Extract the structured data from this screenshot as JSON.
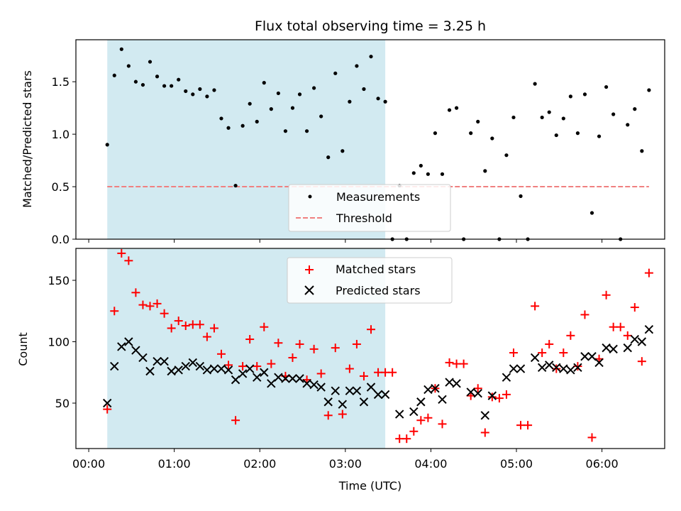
{
  "chart_data": [
    {
      "type": "scatter",
      "title": "Flux total observing time = 3.25 h",
      "xlabel": "",
      "ylabel": "Matched/Predicted stars",
      "ylim": [
        0,
        1.9
      ],
      "yticks": [
        "0.0",
        "0.5",
        "1.0",
        "1.5"
      ],
      "highlight_span": {
        "start": "00:13",
        "end": "03:28",
        "color": "#add8e6"
      },
      "threshold": {
        "name": "Threshold",
        "value": 0.5,
        "color": "#f08080"
      },
      "legend": {
        "position": "bottom-center",
        "entries": [
          "Measurements",
          "Threshold"
        ]
      },
      "series": [
        {
          "name": "Measurements",
          "marker": "dot",
          "color": "#000000",
          "x": [
            "00:13",
            "00:18",
            "00:23",
            "00:28",
            "00:33",
            "00:38",
            "00:43",
            "00:48",
            "00:53",
            "00:58",
            "01:03",
            "01:08",
            "01:13",
            "01:18",
            "01:23",
            "01:28",
            "01:33",
            "01:38",
            "01:43",
            "01:48",
            "01:53",
            "01:58",
            "02:03",
            "02:08",
            "02:13",
            "02:18",
            "02:23",
            "02:28",
            "02:33",
            "02:38",
            "02:43",
            "02:48",
            "02:53",
            "02:58",
            "03:03",
            "03:08",
            "03:13",
            "03:18",
            "03:23",
            "03:28",
            "03:33",
            "03:38",
            "03:43",
            "03:48",
            "03:53",
            "03:58",
            "04:03",
            "04:08",
            "04:13",
            "04:18",
            "04:23",
            "04:28",
            "04:33",
            "04:38",
            "04:43",
            "04:48",
            "04:53",
            "04:58",
            "05:03",
            "05:08",
            "05:13",
            "05:18",
            "05:23",
            "05:28",
            "05:33",
            "05:38",
            "05:43",
            "05:48",
            "05:53",
            "05:58",
            "06:03",
            "06:08",
            "06:13",
            "06:18",
            "06:23",
            "06:28",
            "06:33"
          ],
          "y": [
            0.9,
            1.56,
            1.81,
            1.65,
            1.5,
            1.47,
            1.69,
            1.55,
            1.46,
            1.46,
            1.52,
            1.41,
            1.38,
            1.43,
            1.36,
            1.42,
            1.15,
            1.06,
            0.51,
            1.08,
            1.29,
            1.12,
            1.49,
            1.24,
            1.39,
            1.03,
            1.25,
            1.38,
            1.03,
            1.44,
            1.17,
            0.78,
            1.58,
            0.84,
            1.31,
            1.65,
            1.43,
            1.74,
            1.34,
            1.31,
            0.0,
            0.51,
            0.0,
            0.63,
            0.7,
            0.62,
            1.01,
            0.62,
            1.23,
            1.25,
            0.0,
            1.01,
            1.12,
            0.65,
            0.96,
            0.0,
            0.8,
            1.16,
            0.41,
            0.0,
            1.48,
            1.16,
            1.21,
            0.99,
            1.15,
            1.36,
            1.01,
            1.38,
            0.25,
            0.98,
            1.45,
            1.19,
            0.0,
            1.09,
            1.24,
            0.84,
            1.42
          ]
        }
      ]
    },
    {
      "type": "scatter",
      "title": "",
      "xlabel": "Time (UTC)",
      "ylabel": "Count",
      "ylim": [
        13,
        176
      ],
      "yticks": [
        "50",
        "100",
        "150"
      ],
      "xticks": [
        "00:00",
        "01:00",
        "02:00",
        "03:00",
        "04:00",
        "05:00",
        "06:00"
      ],
      "highlight_span": {
        "start": "00:13",
        "end": "03:28",
        "color": "#add8e6"
      },
      "legend": {
        "position": "top-center",
        "entries": [
          "Matched stars",
          "Predicted stars"
        ]
      },
      "series": [
        {
          "name": "Matched stars",
          "marker": "plus",
          "color": "#ff0000",
          "x": [
            "00:13",
            "00:18",
            "00:23",
            "00:28",
            "00:33",
            "00:38",
            "00:43",
            "00:48",
            "00:53",
            "00:58",
            "01:03",
            "01:08",
            "01:13",
            "01:18",
            "01:23",
            "01:28",
            "01:33",
            "01:38",
            "01:43",
            "01:48",
            "01:53",
            "01:58",
            "02:03",
            "02:08",
            "02:13",
            "02:18",
            "02:23",
            "02:28",
            "02:33",
            "02:38",
            "02:43",
            "02:48",
            "02:53",
            "02:58",
            "03:03",
            "03:08",
            "03:13",
            "03:18",
            "03:23",
            "03:28",
            "03:33",
            "03:38",
            "03:43",
            "03:48",
            "03:53",
            "03:58",
            "04:03",
            "04:08",
            "04:13",
            "04:18",
            "04:23",
            "04:28",
            "04:33",
            "04:38",
            "04:43",
            "04:48",
            "04:53",
            "04:58",
            "05:03",
            "05:08",
            "05:13",
            "05:18",
            "05:23",
            "05:28",
            "05:33",
            "05:38",
            "05:43",
            "05:48",
            "05:53",
            "05:58",
            "06:03",
            "06:08",
            "06:13",
            "06:18",
            "06:23",
            "06:28",
            "06:33"
          ],
          "y": [
            45,
            125,
            172,
            166,
            140,
            130,
            129,
            131,
            123,
            111,
            117,
            113,
            114,
            114,
            104,
            111,
            90,
            81,
            36,
            80,
            102,
            80,
            112,
            82,
            99,
            72,
            87,
            98,
            69,
            94,
            74,
            40,
            95,
            41,
            78,
            98,
            72,
            110,
            75,
            75,
            75,
            21,
            21,
            27,
            36,
            38,
            62,
            33,
            83,
            82,
            82,
            56,
            62,
            26,
            55,
            54,
            57,
            91,
            32,
            32,
            129,
            91,
            98,
            78,
            91,
            105,
            80,
            122,
            22,
            86,
            138,
            112,
            112,
            105,
            128,
            84,
            156
          ]
        },
        {
          "name": "Predicted stars",
          "marker": "x",
          "color": "#000000",
          "x": [
            "00:13",
            "00:18",
            "00:23",
            "00:28",
            "00:33",
            "00:38",
            "00:43",
            "00:48",
            "00:53",
            "00:58",
            "01:03",
            "01:08",
            "01:13",
            "01:18",
            "01:23",
            "01:28",
            "01:33",
            "01:38",
            "01:43",
            "01:48",
            "01:53",
            "01:58",
            "02:03",
            "02:08",
            "02:13",
            "02:18",
            "02:23",
            "02:28",
            "02:33",
            "02:38",
            "02:43",
            "02:48",
            "02:53",
            "02:58",
            "03:03",
            "03:08",
            "03:13",
            "03:18",
            "03:23",
            "03:28",
            "03:33",
            "03:38",
            "03:43",
            "03:48",
            "03:53",
            "03:58",
            "04:03",
            "04:08",
            "04:13",
            "04:18",
            "04:23",
            "04:28",
            "04:33",
            "04:38",
            "04:43",
            "04:48",
            "04:53",
            "04:58",
            "05:03",
            "05:08",
            "05:13",
            "05:18",
            "05:23",
            "05:28",
            "05:33",
            "05:38",
            "05:43",
            "05:48",
            "05:53",
            "05:58",
            "06:03",
            "06:08",
            "06:13",
            "06:18",
            "06:23",
            "06:28",
            "06:33"
          ],
          "y": [
            50,
            80,
            96,
            100,
            93,
            87,
            76,
            84,
            84,
            76,
            77,
            80,
            83,
            80,
            77,
            78,
            78,
            77,
            69,
            74,
            78,
            71,
            75,
            66,
            71,
            70,
            70,
            70,
            66,
            65,
            63,
            51,
            60,
            49,
            60,
            60,
            51,
            63,
            57,
            57,
            null,
            41,
            null,
            43,
            51,
            61,
            62,
            53,
            67,
            66,
            null,
            59,
            58,
            40,
            56,
            null,
            71,
            78,
            78,
            null,
            87,
            79,
            81,
            79,
            78,
            77,
            79,
            88,
            88,
            83,
            95,
            94,
            null,
            95,
            102,
            100,
            110
          ]
        }
      ]
    }
  ]
}
